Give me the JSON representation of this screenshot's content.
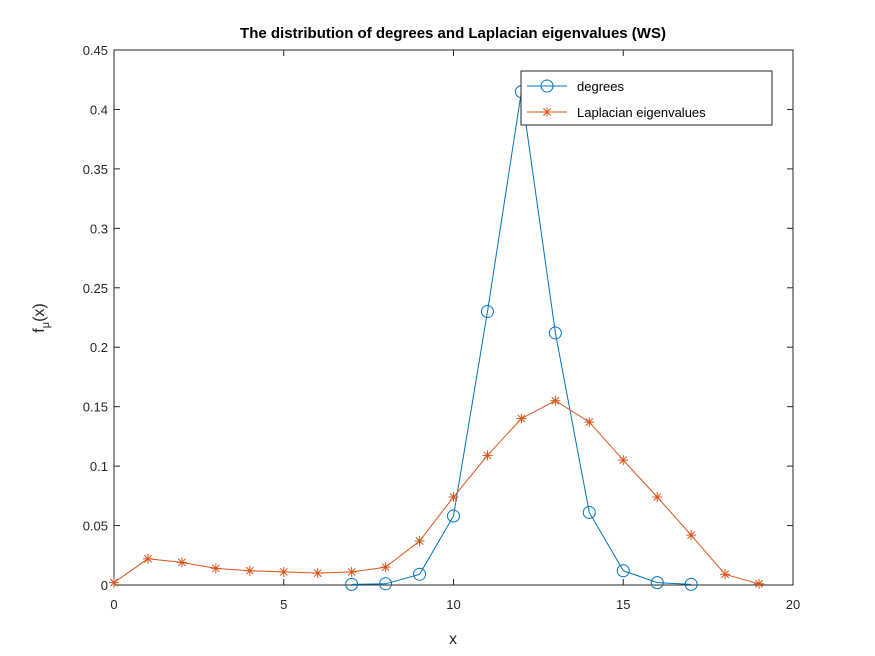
{
  "chart_data": {
    "type": "line",
    "title": "The distribution of degrees and Laplacian eigenvalues (WS)",
    "xlabel": "x",
    "ylabel": {
      "main": "f",
      "sub": "μ",
      "suffix": "(x)"
    },
    "xlim": [
      0,
      20
    ],
    "ylim": [
      0,
      0.45
    ],
    "x_ticks": [
      0,
      5,
      10,
      15,
      20
    ],
    "x_tick_labels": [
      "0",
      "5",
      "10",
      "15",
      "20"
    ],
    "y_ticks": [
      0,
      0.05,
      0.1,
      0.15,
      0.2,
      0.25,
      0.3,
      0.35,
      0.4,
      0.45
    ],
    "y_tick_labels": [
      "0",
      "0.05",
      "0.1",
      "0.15",
      "0.2",
      "0.25",
      "0.3",
      "0.35",
      "0.4",
      "0.45"
    ],
    "grid": false,
    "legend_position": "top-right",
    "series": [
      {
        "name": "degrees",
        "color": "#0072BD",
        "marker": "circle",
        "x": [
          7,
          8,
          9,
          10,
          11,
          12,
          13,
          14,
          15,
          16,
          17
        ],
        "y": [
          0.0005,
          0.001,
          0.009,
          0.058,
          0.23,
          0.415,
          0.212,
          0.061,
          0.012,
          0.002,
          0.0005
        ]
      },
      {
        "name": "Laplacian eigenvalues",
        "color": "#D95319",
        "marker": "asterisk",
        "x": [
          0,
          1,
          2,
          3,
          4,
          5,
          6,
          7,
          8,
          9,
          10,
          11,
          12,
          13,
          14,
          15,
          16,
          17,
          18,
          19
        ],
        "y": [
          0.002,
          0.022,
          0.019,
          0.014,
          0.012,
          0.011,
          0.01,
          0.011,
          0.015,
          0.037,
          0.074,
          0.109,
          0.14,
          0.155,
          0.137,
          0.105,
          0.074,
          0.042,
          0.009,
          0.001
        ]
      }
    ]
  }
}
